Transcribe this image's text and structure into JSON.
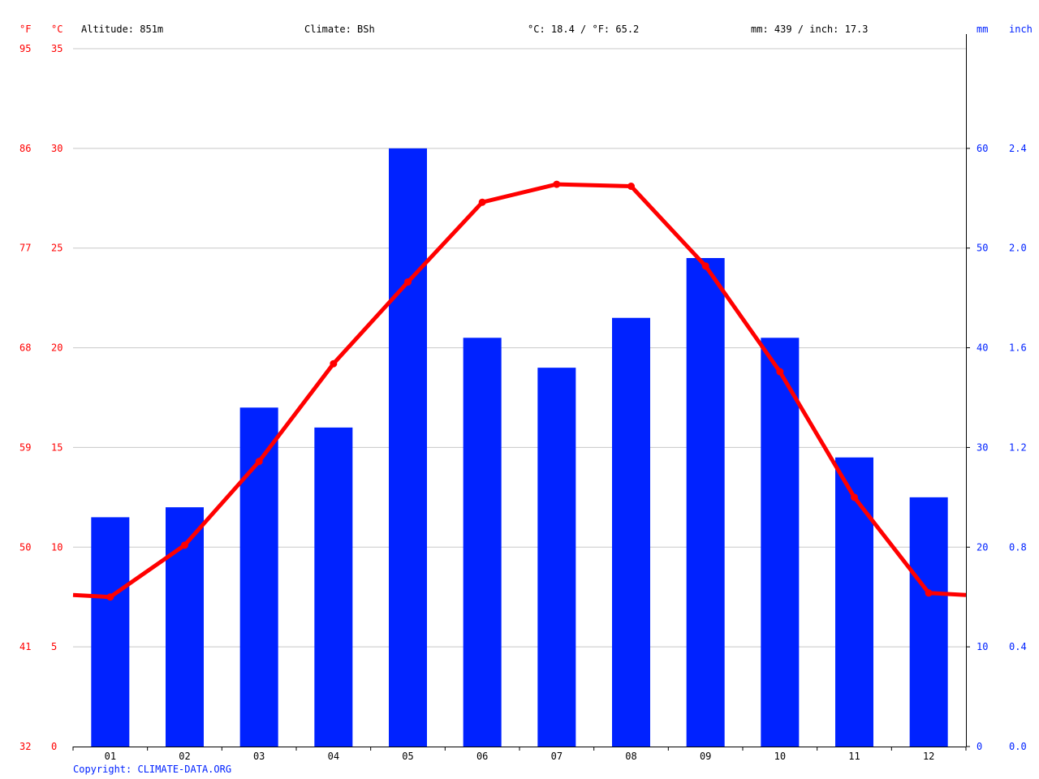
{
  "header": {
    "unit_f": "°F",
    "unit_c": "°C",
    "altitude": "Altitude: 851m",
    "climate": "Climate: BSh",
    "temp_avg": "°C: 18.4 / °F: 65.2",
    "precip_total": "mm: 439 / inch: 17.3",
    "unit_mm": "mm",
    "unit_inch": "inch"
  },
  "footer": {
    "copyright": "Copyright: CLIMATE-DATA.ORG"
  },
  "colors": {
    "temperature": "#ff0000",
    "precipitation": "#0022ff",
    "grid": "#c8c8c8"
  },
  "chart_data": {
    "type": "bar+line",
    "categories": [
      "01",
      "02",
      "03",
      "04",
      "05",
      "06",
      "07",
      "08",
      "09",
      "10",
      "11",
      "12"
    ],
    "precipitation_mm": [
      23,
      24,
      34,
      32,
      60,
      41,
      38,
      43,
      49,
      41,
      29,
      25
    ],
    "temperature_c": [
      7.5,
      10.1,
      14.3,
      19.2,
      23.3,
      27.3,
      28.2,
      28.1,
      24.1,
      18.8,
      12.5,
      7.7
    ],
    "temperature_edge_c": {
      "start": 7.6,
      "end": 7.6
    },
    "left_axis_f_ticks": [
      "32",
      "41",
      "50",
      "59",
      "68",
      "77",
      "86",
      "95"
    ],
    "left_axis_c_ticks": [
      "0",
      "5",
      "10",
      "15",
      "20",
      "25",
      "30",
      "35"
    ],
    "right_axis_mm_ticks": [
      "0",
      "10",
      "20",
      "30",
      "40",
      "50",
      "60"
    ],
    "right_axis_inch_ticks": [
      "0.0",
      "0.4",
      "0.8",
      "1.2",
      "1.6",
      "2.0",
      "2.4"
    ],
    "c_range": [
      0,
      35
    ],
    "mm_range": [
      0,
      70
    ],
    "grid": true
  }
}
